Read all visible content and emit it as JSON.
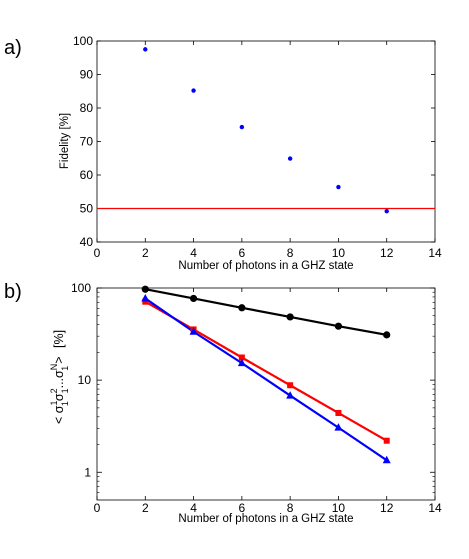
{
  "chart_data": [
    {
      "panel_label": "a)",
      "type": "scatter",
      "xlabel": "Number of photons in a GHZ state",
      "ylabel": "Fidelity [%]",
      "xlim": [
        0,
        14
      ],
      "ylim": [
        40,
        100
      ],
      "xticks": [
        0,
        2,
        4,
        6,
        8,
        10,
        12,
        14
      ],
      "yticks": [
        40,
        50,
        60,
        70,
        80,
        90,
        100
      ],
      "grid": false,
      "series": [
        {
          "color": "#0000ff",
          "marker": "dot",
          "x": [
            2,
            4,
            6,
            8,
            10,
            12
          ],
          "y": [
            97.5,
            85.2,
            74.3,
            64.9,
            56.4,
            49.2
          ]
        }
      ],
      "reference_line": {
        "y": 50,
        "color": "#ff0000"
      }
    },
    {
      "panel_label": "b)",
      "type": "line",
      "xlabel": "Number of photons in a GHZ state",
      "ylabel_unit": "[%]",
      "yscale": "log",
      "xlim": [
        0,
        14
      ],
      "ylim": [
        0.5,
        100
      ],
      "xticks": [
        0,
        2,
        4,
        6,
        8,
        10,
        12,
        14
      ],
      "yticks": [
        1,
        10,
        100
      ],
      "grid": false,
      "series": [
        {
          "color": "#000000",
          "marker": "circle",
          "x": [
            2,
            4,
            6,
            8,
            10,
            12
          ],
          "y": [
            97,
            77,
            61,
            48.5,
            38.5,
            31
          ]
        },
        {
          "color": "#ff0000",
          "marker": "square",
          "x": [
            2,
            4,
            6,
            8,
            10,
            12
          ],
          "y": [
            71,
            35.5,
            17.6,
            8.8,
            4.4,
            2.2
          ]
        },
        {
          "color": "#0000ff",
          "marker": "triangle",
          "x": [
            2,
            4,
            6,
            8,
            10,
            12
          ],
          "y": [
            77,
            33.5,
            15.3,
            6.8,
            3.05,
            1.35
          ]
        }
      ]
    }
  ]
}
